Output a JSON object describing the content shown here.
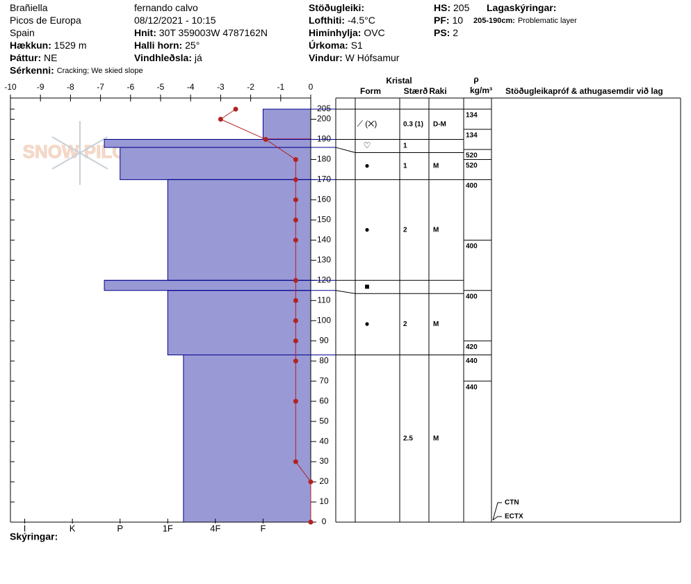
{
  "header": {
    "col1": [
      {
        "value": "Brañiella"
      },
      {
        "value": "Picos de Europa"
      },
      {
        "value": "Spain"
      },
      {
        "label": "Hækkun:",
        "value": "1529 m"
      },
      {
        "label": "Þáttur:",
        "value": "NE"
      },
      {
        "label": "Sérkenni:",
        "value": "Cracking;  We skied slope",
        "small": true
      }
    ],
    "col2": [
      {
        "value": "fernando calvo"
      },
      {
        "value": "08/12/2021 - 10:15"
      },
      {
        "label": "Hnit:",
        "value": "30T 359003W 4787162N"
      },
      {
        "label": "Halli horn:",
        "value": "25°"
      },
      {
        "label": "Vindhleðsla:",
        "value": "já"
      }
    ],
    "col3": [
      {
        "label": "Stöðugleiki:"
      },
      {
        "label": "Lofthiti:",
        "value": "-4.5°C"
      },
      {
        "label": "Himinhylja:",
        "value": "OVC"
      },
      {
        "label": "Úrkoma:",
        "value": "S1"
      },
      {
        "label": "Vindur:",
        "value": "W Hófsamur"
      }
    ],
    "col4": [
      {
        "label": "HS:",
        "value": "205"
      },
      {
        "label": "PF:",
        "value": "10"
      },
      {
        "label": "PS:",
        "value": "2"
      }
    ],
    "col5": [
      {
        "label": "Lagaskýringar:"
      },
      {
        "label": "205-190cm:",
        "value": "Problematic layer",
        "small": true
      }
    ]
  },
  "watermark": "SNOW PILOT",
  "notes_label": "Skýringar:",
  "profile": {
    "type": "snow-profile",
    "ylim": [
      0,
      205
    ],
    "yticks": [
      0,
      10,
      20,
      30,
      40,
      50,
      60,
      70,
      80,
      90,
      100,
      110,
      120,
      130,
      140,
      150,
      160,
      170,
      180,
      190,
      200,
      205
    ],
    "temperature": {
      "xlim": [
        -10,
        0
      ],
      "xticks": [
        -10,
        -9,
        -8,
        -7,
        -6,
        -5,
        -4,
        -3,
        -2,
        -1,
        0
      ],
      "color": "#b22222",
      "heights": [
        205,
        200,
        190,
        180,
        170,
        160,
        150,
        140,
        120,
        110,
        100,
        90,
        80,
        60,
        30,
        20,
        0
      ],
      "values": [
        -2.5,
        -3,
        -1.5,
        -0.5,
        -0.5,
        -0.5,
        -0.5,
        -0.5,
        -0.5,
        -0.5,
        -0.5,
        -0.5,
        -0.5,
        -0.5,
        -0.5,
        0,
        0
      ]
    },
    "hardness": {
      "xlim": [
        0,
        6.3
      ],
      "xticks": [
        {
          "value": 6,
          "label": "I"
        },
        {
          "value": 5,
          "label": "K"
        },
        {
          "value": 4,
          "label": "P"
        },
        {
          "value": 3,
          "label": "1F"
        },
        {
          "value": 2,
          "label": "4F"
        },
        {
          "value": 1,
          "label": "F"
        }
      ],
      "color": "#9999d6"
    },
    "table_headers": {
      "crystal": "Kristal",
      "form": "Form",
      "size": "Stærð",
      "moisture": "Raki",
      "rho": "ρ",
      "density_unit": "kg/m³",
      "tests": "Stöðugleikapróf & athugasemdir við lag"
    },
    "layers": [
      {
        "top": 205,
        "bottom": 190,
        "hardness": 1,
        "form": "⟋ (✕)",
        "size": "0.3 (1)",
        "moisture": "D-M",
        "problematic": true
      },
      {
        "top": 190,
        "bottom": 186,
        "hardness": 4.33,
        "form": "♡",
        "size": "1"
      },
      {
        "top": 186,
        "bottom": 170,
        "hardness": 4,
        "form": "●",
        "size": "1",
        "moisture": "M"
      },
      {
        "top": 170,
        "bottom": 120,
        "hardness": 3,
        "form": "●",
        "size": "2",
        "moisture": "M"
      },
      {
        "top": 120,
        "bottom": 115,
        "hardness": 4.33,
        "form": "■"
      },
      {
        "top": 115,
        "bottom": 83,
        "hardness": 3,
        "form": "●",
        "size": "2",
        "moisture": "M"
      },
      {
        "top": 83,
        "bottom": 0,
        "hardness": 2.67,
        "size": "2.5",
        "moisture": "M"
      }
    ],
    "density": [
      {
        "cm": 205,
        "value": 134
      },
      {
        "cm": 195,
        "value": 134
      },
      {
        "cm": 185,
        "value": 520
      },
      {
        "cm": 180,
        "value": 520
      },
      {
        "cm": 170,
        "value": 400
      },
      {
        "cm": 140,
        "value": 400
      },
      {
        "cm": 115,
        "value": 400
      },
      {
        "cm": 90,
        "value": 420
      },
      {
        "cm": 83,
        "value": 440
      },
      {
        "cm": 70,
        "value": 440
      }
    ],
    "tests": [
      "CTN",
      "ECTX"
    ]
  }
}
